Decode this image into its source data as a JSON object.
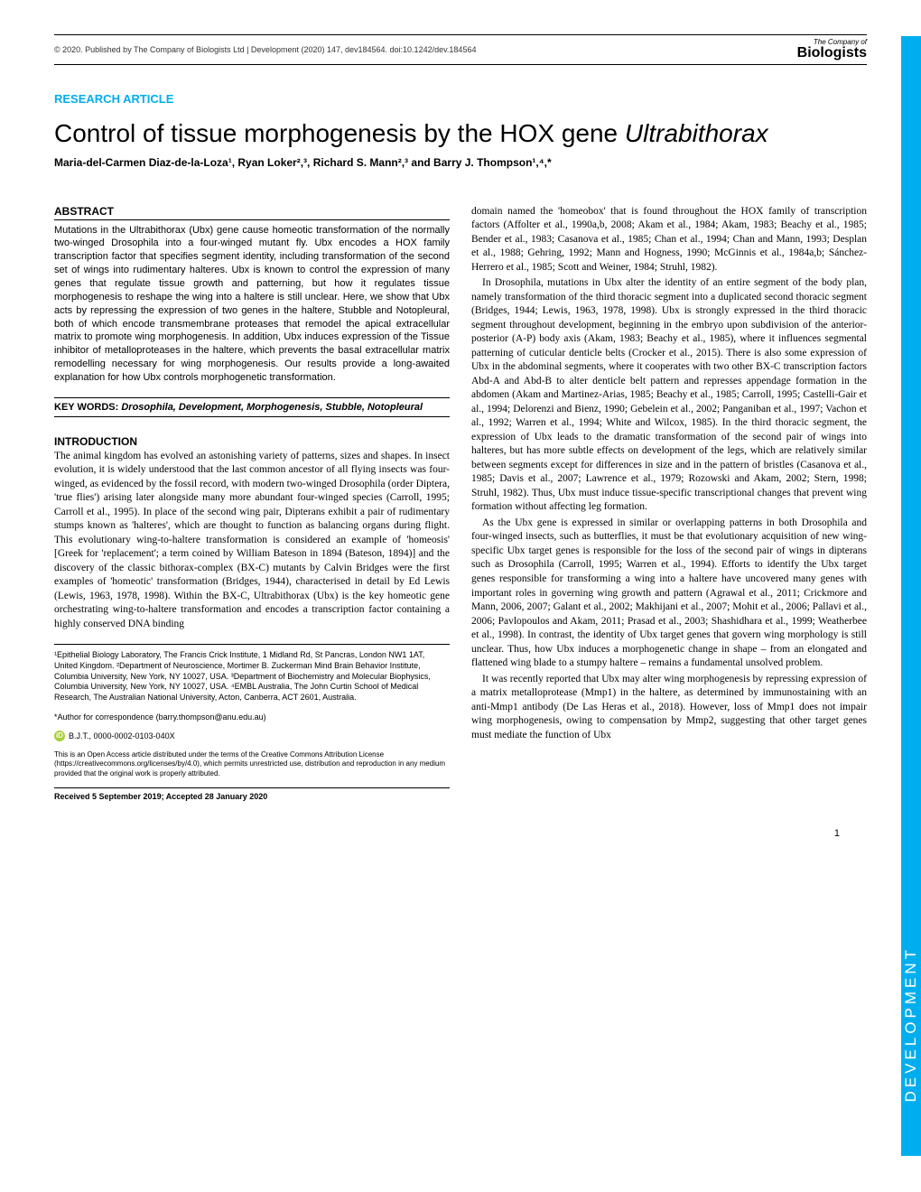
{
  "header": {
    "copyright": "© 2020. Published by The Company of Biologists Ltd | Development (2020) 147, dev184564. doi:10.1242/dev.184564",
    "logo_top": "The Company of",
    "logo_bottom": "Biologists"
  },
  "article_type": "RESEARCH ARTICLE",
  "title_pre": "Control of tissue morphogenesis by the HOX gene ",
  "title_italic": "Ultrabithorax",
  "authors": "Maria-del-Carmen Diaz-de-la-Loza¹, Ryan Loker²,³, Richard S. Mann²,³ and Barry J. Thompson¹,⁴,*",
  "abstract_heading": "ABSTRACT",
  "abstract_text": "Mutations in the Ultrabithorax (Ubx) gene cause homeotic transformation of the normally two-winged Drosophila into a four-winged mutant fly. Ubx encodes a HOX family transcription factor that specifies segment identity, including transformation of the second set of wings into rudimentary halteres. Ubx is known to control the expression of many genes that regulate tissue growth and patterning, but how it regulates tissue morphogenesis to reshape the wing into a haltere is still unclear. Here, we show that Ubx acts by repressing the expression of two genes in the haltere, Stubble and Notopleural, both of which encode transmembrane proteases that remodel the apical extracellular matrix to promote wing morphogenesis. In addition, Ubx induces expression of the Tissue inhibitor of metalloproteases in the haltere, which prevents the basal extracellular matrix remodelling necessary for wing morphogenesis. Our results provide a long-awaited explanation for how Ubx controls morphogenetic transformation.",
  "keywords_label": "KEY WORDS: ",
  "keywords": "Drosophila, Development, Morphogenesis, Stubble, Notopleural",
  "intro_heading": "INTRODUCTION",
  "intro_para1": "The animal kingdom has evolved an astonishing variety of patterns, sizes and shapes. In insect evolution, it is widely understood that the last common ancestor of all flying insects was four-winged, as evidenced by the fossil record, with modern two-winged Drosophila (order Diptera, 'true flies') arising later alongside many more abundant four-winged species (Carroll, 1995; Carroll et al., 1995). In place of the second wing pair, Dipterans exhibit a pair of rudimentary stumps known as 'halteres', which are thought to function as balancing organs during flight. This evolutionary wing-to-haltere transformation is considered an example of 'homeosis' [Greek for 'replacement'; a term coined by William Bateson in 1894 (Bateson, 1894)] and the discovery of the classic bithorax-complex (BX-C) mutants by Calvin Bridges were the first examples of 'homeotic' transformation (Bridges, 1944), characterised in detail by Ed Lewis (Lewis, 1963, 1978, 1998). Within the BX-C, Ultrabithorax (Ubx) is the key homeotic gene orchestrating wing-to-haltere transformation and encodes a transcription factor containing a highly conserved DNA binding",
  "col2_para1": "domain named the 'homeobox' that is found throughout the HOX family of transcription factors (Affolter et al., 1990a,b, 2008; Akam et al., 1984; Akam, 1983; Beachy et al., 1985; Bender et al., 1983; Casanova et al., 1985; Chan et al., 1994; Chan and Mann, 1993; Desplan et al., 1988; Gehring, 1992; Mann and Hogness, 1990; McGinnis et al., 1984a,b; Sánchez-Herrero et al., 1985; Scott and Weiner, 1984; Struhl, 1982).",
  "col2_para2": "In Drosophila, mutations in Ubx alter the identity of an entire segment of the body plan, namely transformation of the third thoracic segment into a duplicated second thoracic segment (Bridges, 1944; Lewis, 1963, 1978, 1998). Ubx is strongly expressed in the third thoracic segment throughout development, beginning in the embryo upon subdivision of the anterior-posterior (A-P) body axis (Akam, 1983; Beachy et al., 1985), where it influences segmental patterning of cuticular denticle belts (Crocker et al., 2015). There is also some expression of Ubx in the abdominal segments, where it cooperates with two other BX-C transcription factors Abd-A and Abd-B to alter denticle belt pattern and represses appendage formation in the abdomen (Akam and Martinez-Arias, 1985; Beachy et al., 1985; Carroll, 1995; Castelli-Gair et al., 1994; Delorenzi and Bienz, 1990; Gebelein et al., 2002; Panganiban et al., 1997; Vachon et al., 1992; Warren et al., 1994; White and Wilcox, 1985). In the third thoracic segment, the expression of Ubx leads to the dramatic transformation of the second pair of wings into halteres, but has more subtle effects on development of the legs, which are relatively similar between segments except for differences in size and in the pattern of bristles (Casanova et al., 1985; Davis et al., 2007; Lawrence et al., 1979; Rozowski and Akam, 2002; Stern, 1998; Struhl, 1982). Thus, Ubx must induce tissue-specific transcriptional changes that prevent wing formation without affecting leg formation.",
  "col2_para3": "As the Ubx gene is expressed in similar or overlapping patterns in both Drosophila and four-winged insects, such as butterflies, it must be that evolutionary acquisition of new wing-specific Ubx target genes is responsible for the loss of the second pair of wings in dipterans such as Drosophila (Carroll, 1995; Warren et al., 1994). Efforts to identify the Ubx target genes responsible for transforming a wing into a haltere have uncovered many genes with important roles in governing wing growth and pattern (Agrawal et al., 2011; Crickmore and Mann, 2006, 2007; Galant et al., 2002; Makhijani et al., 2007; Mohit et al., 2006; Pallavi et al., 2006; Pavlopoulos and Akam, 2011; Prasad et al., 2003; Shashidhara et al., 1999; Weatherbee et al., 1998). In contrast, the identity of Ubx target genes that govern wing morphology is still unclear. Thus, how Ubx induces a morphogenetic change in shape – from an elongated and flattened wing blade to a stumpy haltere – remains a fundamental unsolved problem.",
  "col2_para4": "It was recently reported that Ubx may alter wing morphogenesis by repressing expression of a matrix metalloprotease (Mmp1) in the haltere, as determined by immunostaining with an anti-Mmp1 antibody (De Las Heras et al., 2018). However, loss of Mmp1 does not impair wing morphogenesis, owing to compensation by Mmp2, suggesting that other target genes must mediate the function of Ubx",
  "affiliations": "¹Epithelial Biology Laboratory, The Francis Crick Institute, 1 Midland Rd, St Pancras, London NW1 1AT, United Kingdom. ²Department of Neuroscience, Mortimer B. Zuckerman Mind Brain Behavior Institute, Columbia University, New York, NY 10027, USA. ³Department of Biochemistry and Molecular Biophysics, Columbia University, New York, NY 10027, USA. ⁴EMBL Australia, The John Curtin School of Medical Research, The Australian National University, Acton, Canberra, ACT 2601, Australia.",
  "correspondence": "*Author for correspondence (barry.thompson@anu.edu.au)",
  "orcid": "B.J.T., 0000-0002-0103-040X",
  "license": "This is an Open Access article distributed under the terms of the Creative Commons Attribution License (https://creativecommons.org/licenses/by/4.0), which permits unrestricted use, distribution and reproduction in any medium provided that the original work is properly attributed.",
  "received": "Received 5 September 2019; Accepted 28 January 2020",
  "sidebar_text": "DEVELOPMENT",
  "page_number": "1",
  "colors": {
    "accent": "#00aeef",
    "orcid_green": "#a6ce39",
    "text": "#000000"
  }
}
